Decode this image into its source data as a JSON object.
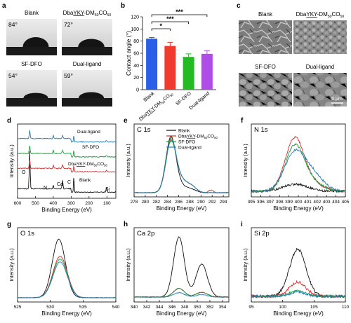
{
  "panel_letters": [
    "a",
    "b",
    "c",
    "d",
    "e",
    "f",
    "g",
    "h",
    "i"
  ],
  "panel_a": {
    "tiles": [
      {
        "label": "Blank",
        "angle": "84°",
        "contact_angle_deg": 84
      },
      {
        "label": "DbaYKY-DM50CO50",
        "angle": "72°",
        "contact_angle_deg": 72
      },
      {
        "label": "SF-DFO",
        "angle": "54°",
        "contact_angle_deg": 54
      },
      {
        "label": "Dual-ligand",
        "angle": "59°",
        "contact_angle_deg": 59
      }
    ]
  },
  "panel_c": {
    "tiles": [
      "Blank",
      "DbaYKY-DM50CO50",
      "SF-DFO",
      "Dual-ligand"
    ],
    "scale_bar": "5 μm"
  },
  "colors": {
    "blank": "#111111",
    "dba": "#d62b2b",
    "sf": "#1a9e3a",
    "dual": "#2a7ab8",
    "bar_blank": "#2b5ee6",
    "bar_dba": "#f03a2e",
    "bar_sf": "#22bb22",
    "bar_dual": "#b04ce8"
  },
  "chart_data": [
    {
      "panel": "b",
      "type": "bar",
      "categories": [
        "Blank",
        "DbaYKY-DM50CO50",
        "SF-DFO",
        "Dual-ligand"
      ],
      "values": [
        84,
        72,
        54,
        59
      ],
      "errors": [
        2,
        6,
        5,
        5
      ],
      "ylabel": "Contact angle (°)",
      "ylim": [
        0,
        120
      ],
      "yticks": [
        0,
        20,
        40,
        60,
        80,
        100,
        120
      ],
      "significance": [
        "*",
        "***",
        "***"
      ]
    },
    {
      "panel": "d",
      "type": "line",
      "xlabel": "Binding Energy (eV)",
      "ylabel": "Intensity (a.u.)",
      "xlim": [
        600,
        50
      ],
      "xticks": [
        600,
        500,
        400,
        300,
        200,
        100
      ],
      "series": [
        {
          "name": "Dual-ligand"
        },
        {
          "name": "SF-DFO"
        },
        {
          "name": "DbaYKY-DM50CO50"
        },
        {
          "name": "Blank"
        }
      ],
      "peak_labels": [
        "O",
        "N",
        "Ca",
        "C",
        "Si"
      ]
    },
    {
      "panel": "e",
      "type": "line",
      "title": "C 1s",
      "xlabel": "Binding Energy (eV)",
      "ylabel": "Intensity (a.u.)",
      "xlim": [
        278,
        295
      ],
      "xticks": [
        278,
        280,
        282,
        284,
        286,
        288,
        290,
        292,
        294
      ],
      "series": [
        {
          "name": "Blank",
          "peak_x": 284.5
        },
        {
          "name": "DbaYKY-DM50CO50",
          "peak_x": 284.6
        },
        {
          "name": "SF-DFO",
          "peak_x": 284.6
        },
        {
          "name": "Dual-ligand",
          "peak_x": 284.6
        }
      ]
    },
    {
      "panel": "f",
      "type": "line",
      "title": "N 1s",
      "xlabel": "Binding Energy (eV)",
      "ylabel": "Intensity (a.u.)",
      "xlim": [
        395,
        405
      ],
      "xticks": [
        395,
        396,
        397,
        398,
        399,
        400,
        401,
        402,
        403,
        404,
        405
      ]
    },
    {
      "panel": "g",
      "type": "line",
      "title": "O 1s",
      "xlabel": "Binding Energy (eV)",
      "ylabel": "Intensity (a.u.)",
      "xlim": [
        525,
        540
      ],
      "xticks": [
        525,
        530,
        535,
        540
      ]
    },
    {
      "panel": "h",
      "type": "line",
      "title": "Ca 2p",
      "xlabel": "Binding Energy (eV)",
      "ylabel": "Intensity (a.u.)",
      "xlim": [
        340,
        355
      ],
      "xticks": [
        340,
        342,
        344,
        346,
        348,
        350,
        352,
        354
      ]
    },
    {
      "panel": "i",
      "type": "line",
      "title": "Si 2p",
      "xlabel": "Binding Energy (eV)",
      "ylabel": "Intensity (a.u.)",
      "xlim": [
        95,
        110
      ],
      "xticks": [
        95,
        100,
        105,
        110
      ]
    }
  ]
}
